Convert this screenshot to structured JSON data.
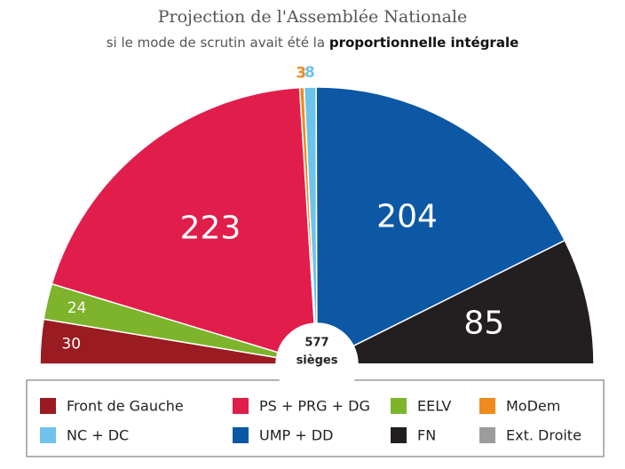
{
  "chart_data": {
    "type": "half-donut",
    "title": "Projection de l'Assemblée Nationale",
    "subtitle": [
      "si le mode de scrutin avait été la",
      "proportionnelle intégrale"
    ],
    "categories": [
      "Front de Gauche",
      "EELV",
      "PS + PRG + DG",
      "MoDem",
      "NC + DC",
      "UMP + DD",
      "FN",
      "Ext. Droite"
    ],
    "values": [
      30,
      24,
      223,
      3,
      8,
      204,
      85,
      0
    ],
    "colors": [
      "#9b1b22",
      "#7db42b",
      "#e11d4b",
      "#f08a1d",
      "#6ec3ea",
      "#0d58a5",
      "#231f20",
      "#9c9c9c"
    ],
    "legend_order": [
      0,
      2,
      1,
      3,
      4,
      5,
      6,
      7
    ],
    "total": 577,
    "total_label": "sièges"
  }
}
